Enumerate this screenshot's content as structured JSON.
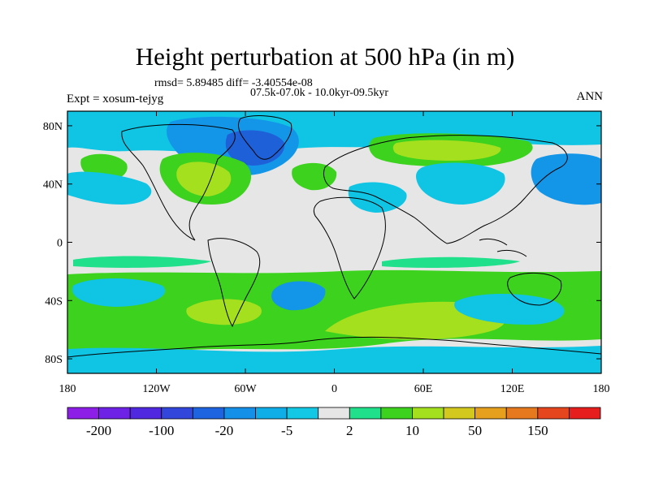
{
  "map": {
    "title": "Height perturbation at 500 hPa (in m)",
    "rmsd_line": "rmsd= 5.89485 diff= -3.40554e-08",
    "period": "07.5k-07.0k - 10.0kyr-09.5kyr",
    "experiment": "Expt = xosum-tejyg",
    "season": "ANN",
    "projection": "cylindrical equidistant",
    "lon_range": [
      -180,
      180
    ],
    "lat_range": [
      -90,
      90
    ],
    "x_ticks": [
      {
        "lon": -180,
        "label": "180"
      },
      {
        "lon": -120,
        "label": "120W"
      },
      {
        "lon": -60,
        "label": "60W"
      },
      {
        "lon": 0,
        "label": "0"
      },
      {
        "lon": 60,
        "label": "60E"
      },
      {
        "lon": 120,
        "label": "120E"
      },
      {
        "lon": 180,
        "label": "180"
      }
    ],
    "y_ticks": [
      {
        "lat": 80,
        "label": "80N"
      },
      {
        "lat": 40,
        "label": "40N"
      },
      {
        "lat": 0,
        "label": "0"
      },
      {
        "lat": -40,
        "label": "40S"
      },
      {
        "lat": -80,
        "label": "80S"
      }
    ],
    "colors": {
      "neutral": "#e6e6e6",
      "light_green": "#20e08c",
      "green": "#3cd21e",
      "yellow_green": "#a5e01e",
      "light_blue": "#10c4e4",
      "blue": "#1496e8",
      "dark_blue": "#1e60d8"
    }
  },
  "colorbar": {
    "colors": [
      "#8c1ee8",
      "#6e22e6",
      "#5028e0",
      "#3246dc",
      "#1e64e0",
      "#1490e8",
      "#10aee8",
      "#12c8e4",
      "#e6e6e6",
      "#20e08c",
      "#3cd21e",
      "#a5e01e",
      "#d2c81e",
      "#e6a01e",
      "#e6781e",
      "#e6461e",
      "#e61e1e"
    ],
    "labels": [
      {
        "value": "-200",
        "boundary": 1
      },
      {
        "value": "-100",
        "boundary": 3
      },
      {
        "value": "-20",
        "boundary": 5
      },
      {
        "value": "-5",
        "boundary": 7
      },
      {
        "value": "2",
        "boundary": 9
      },
      {
        "value": "10",
        "boundary": 11
      },
      {
        "value": "50",
        "boundary": 13
      },
      {
        "value": "150",
        "boundary": 15
      }
    ]
  }
}
